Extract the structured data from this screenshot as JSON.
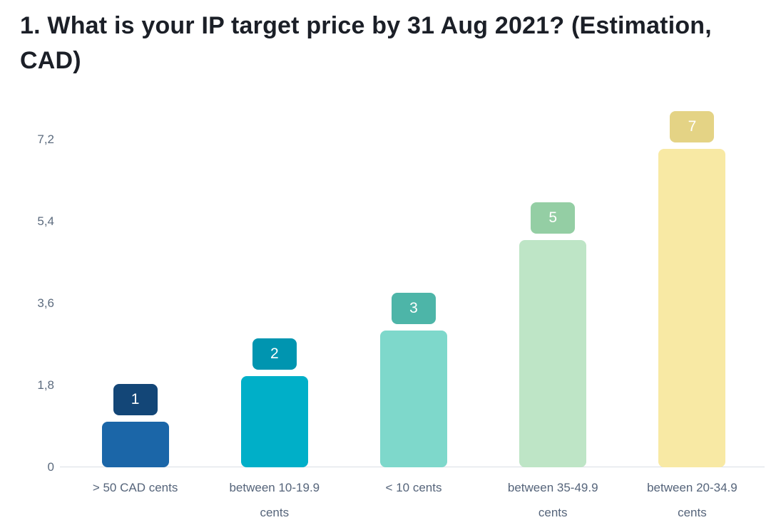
{
  "chart_data": {
    "type": "bar",
    "title": "1. What is your IP target price by 31 Aug 2021? (Estimation, CAD)",
    "categories": [
      "> 50 CAD cents",
      "between 10-19.9 cents",
      "< 10 cents",
      "between 35-49.9 cents",
      "between 20-34.9 cents"
    ],
    "values": [
      1,
      2,
      3,
      5,
      7
    ],
    "value_labels": [
      "1",
      "2",
      "3",
      "5",
      "7"
    ],
    "bar_colors": [
      "#1b66a8",
      "#00afc8",
      "#7ed8cb",
      "#bee5c6",
      "#f8e9a4"
    ],
    "badge_colors": [
      "#134677",
      "#0095b0",
      "#4db5a8",
      "#94cea4",
      "#e4d385"
    ],
    "xlabel": "",
    "ylabel": "",
    "ylim": [
      0,
      7.2
    ],
    "yticks": [
      0,
      1.8,
      3.6,
      5.4,
      7.2
    ],
    "ytick_labels": [
      "0",
      "1,8",
      "3,6",
      "5,4",
      "7,2"
    ],
    "grid": false,
    "legend": "none",
    "background": "#ffffff"
  }
}
